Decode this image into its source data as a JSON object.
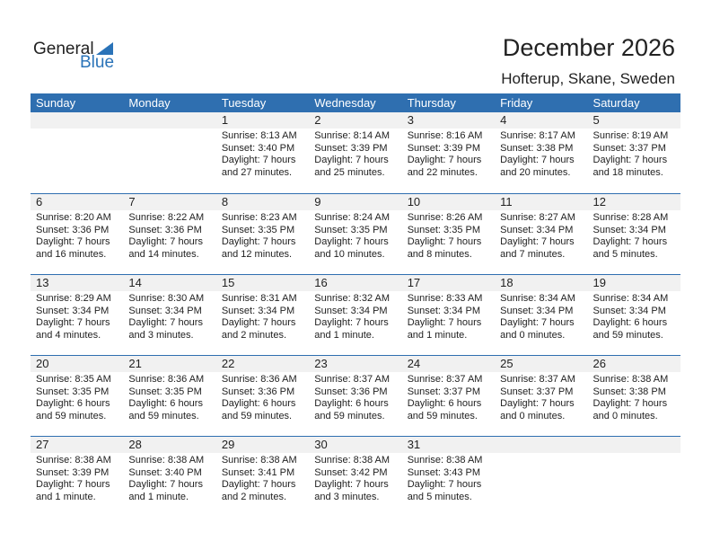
{
  "logo": {
    "line1": "General",
    "line2": "Blue"
  },
  "title": "December 2026",
  "location": "Hofterup, Skane, Sweden",
  "days": [
    "Sunday",
    "Monday",
    "Tuesday",
    "Wednesday",
    "Thursday",
    "Friday",
    "Saturday"
  ],
  "weeks": [
    [
      null,
      null,
      {
        "d": "1",
        "sr": "Sunrise: 8:13 AM",
        "ss": "Sunset: 3:40 PM",
        "dl": "Daylight: 7 hours",
        "dm": "and 27 minutes."
      },
      {
        "d": "2",
        "sr": "Sunrise: 8:14 AM",
        "ss": "Sunset: 3:39 PM",
        "dl": "Daylight: 7 hours",
        "dm": "and 25 minutes."
      },
      {
        "d": "3",
        "sr": "Sunrise: 8:16 AM",
        "ss": "Sunset: 3:39 PM",
        "dl": "Daylight: 7 hours",
        "dm": "and 22 minutes."
      },
      {
        "d": "4",
        "sr": "Sunrise: 8:17 AM",
        "ss": "Sunset: 3:38 PM",
        "dl": "Daylight: 7 hours",
        "dm": "and 20 minutes."
      },
      {
        "d": "5",
        "sr": "Sunrise: 8:19 AM",
        "ss": "Sunset: 3:37 PM",
        "dl": "Daylight: 7 hours",
        "dm": "and 18 minutes."
      }
    ],
    [
      {
        "d": "6",
        "sr": "Sunrise: 8:20 AM",
        "ss": "Sunset: 3:36 PM",
        "dl": "Daylight: 7 hours",
        "dm": "and 16 minutes."
      },
      {
        "d": "7",
        "sr": "Sunrise: 8:22 AM",
        "ss": "Sunset: 3:36 PM",
        "dl": "Daylight: 7 hours",
        "dm": "and 14 minutes."
      },
      {
        "d": "8",
        "sr": "Sunrise: 8:23 AM",
        "ss": "Sunset: 3:35 PM",
        "dl": "Daylight: 7 hours",
        "dm": "and 12 minutes."
      },
      {
        "d": "9",
        "sr": "Sunrise: 8:24 AM",
        "ss": "Sunset: 3:35 PM",
        "dl": "Daylight: 7 hours",
        "dm": "and 10 minutes."
      },
      {
        "d": "10",
        "sr": "Sunrise: 8:26 AM",
        "ss": "Sunset: 3:35 PM",
        "dl": "Daylight: 7 hours",
        "dm": "and 8 minutes."
      },
      {
        "d": "11",
        "sr": "Sunrise: 8:27 AM",
        "ss": "Sunset: 3:34 PM",
        "dl": "Daylight: 7 hours",
        "dm": "and 7 minutes."
      },
      {
        "d": "12",
        "sr": "Sunrise: 8:28 AM",
        "ss": "Sunset: 3:34 PM",
        "dl": "Daylight: 7 hours",
        "dm": "and 5 minutes."
      }
    ],
    [
      {
        "d": "13",
        "sr": "Sunrise: 8:29 AM",
        "ss": "Sunset: 3:34 PM",
        "dl": "Daylight: 7 hours",
        "dm": "and 4 minutes."
      },
      {
        "d": "14",
        "sr": "Sunrise: 8:30 AM",
        "ss": "Sunset: 3:34 PM",
        "dl": "Daylight: 7 hours",
        "dm": "and 3 minutes."
      },
      {
        "d": "15",
        "sr": "Sunrise: 8:31 AM",
        "ss": "Sunset: 3:34 PM",
        "dl": "Daylight: 7 hours",
        "dm": "and 2 minutes."
      },
      {
        "d": "16",
        "sr": "Sunrise: 8:32 AM",
        "ss": "Sunset: 3:34 PM",
        "dl": "Daylight: 7 hours",
        "dm": "and 1 minute."
      },
      {
        "d": "17",
        "sr": "Sunrise: 8:33 AM",
        "ss": "Sunset: 3:34 PM",
        "dl": "Daylight: 7 hours",
        "dm": "and 1 minute."
      },
      {
        "d": "18",
        "sr": "Sunrise: 8:34 AM",
        "ss": "Sunset: 3:34 PM",
        "dl": "Daylight: 7 hours",
        "dm": "and 0 minutes."
      },
      {
        "d": "19",
        "sr": "Sunrise: 8:34 AM",
        "ss": "Sunset: 3:34 PM",
        "dl": "Daylight: 6 hours",
        "dm": "and 59 minutes."
      }
    ],
    [
      {
        "d": "20",
        "sr": "Sunrise: 8:35 AM",
        "ss": "Sunset: 3:35 PM",
        "dl": "Daylight: 6 hours",
        "dm": "and 59 minutes."
      },
      {
        "d": "21",
        "sr": "Sunrise: 8:36 AM",
        "ss": "Sunset: 3:35 PM",
        "dl": "Daylight: 6 hours",
        "dm": "and 59 minutes."
      },
      {
        "d": "22",
        "sr": "Sunrise: 8:36 AM",
        "ss": "Sunset: 3:36 PM",
        "dl": "Daylight: 6 hours",
        "dm": "and 59 minutes."
      },
      {
        "d": "23",
        "sr": "Sunrise: 8:37 AM",
        "ss": "Sunset: 3:36 PM",
        "dl": "Daylight: 6 hours",
        "dm": "and 59 minutes."
      },
      {
        "d": "24",
        "sr": "Sunrise: 8:37 AM",
        "ss": "Sunset: 3:37 PM",
        "dl": "Daylight: 6 hours",
        "dm": "and 59 minutes."
      },
      {
        "d": "25",
        "sr": "Sunrise: 8:37 AM",
        "ss": "Sunset: 3:37 PM",
        "dl": "Daylight: 7 hours",
        "dm": "and 0 minutes."
      },
      {
        "d": "26",
        "sr": "Sunrise: 8:38 AM",
        "ss": "Sunset: 3:38 PM",
        "dl": "Daylight: 7 hours",
        "dm": "and 0 minutes."
      }
    ],
    [
      {
        "d": "27",
        "sr": "Sunrise: 8:38 AM",
        "ss": "Sunset: 3:39 PM",
        "dl": "Daylight: 7 hours",
        "dm": "and 1 minute."
      },
      {
        "d": "28",
        "sr": "Sunrise: 8:38 AM",
        "ss": "Sunset: 3:40 PM",
        "dl": "Daylight: 7 hours",
        "dm": "and 1 minute."
      },
      {
        "d": "29",
        "sr": "Sunrise: 8:38 AM",
        "ss": "Sunset: 3:41 PM",
        "dl": "Daylight: 7 hours",
        "dm": "and 2 minutes."
      },
      {
        "d": "30",
        "sr": "Sunrise: 8:38 AM",
        "ss": "Sunset: 3:42 PM",
        "dl": "Daylight: 7 hours",
        "dm": "and 3 minutes."
      },
      {
        "d": "31",
        "sr": "Sunrise: 8:38 AM",
        "ss": "Sunset: 3:43 PM",
        "dl": "Daylight: 7 hours",
        "dm": "and 5 minutes."
      },
      null,
      null
    ]
  ]
}
